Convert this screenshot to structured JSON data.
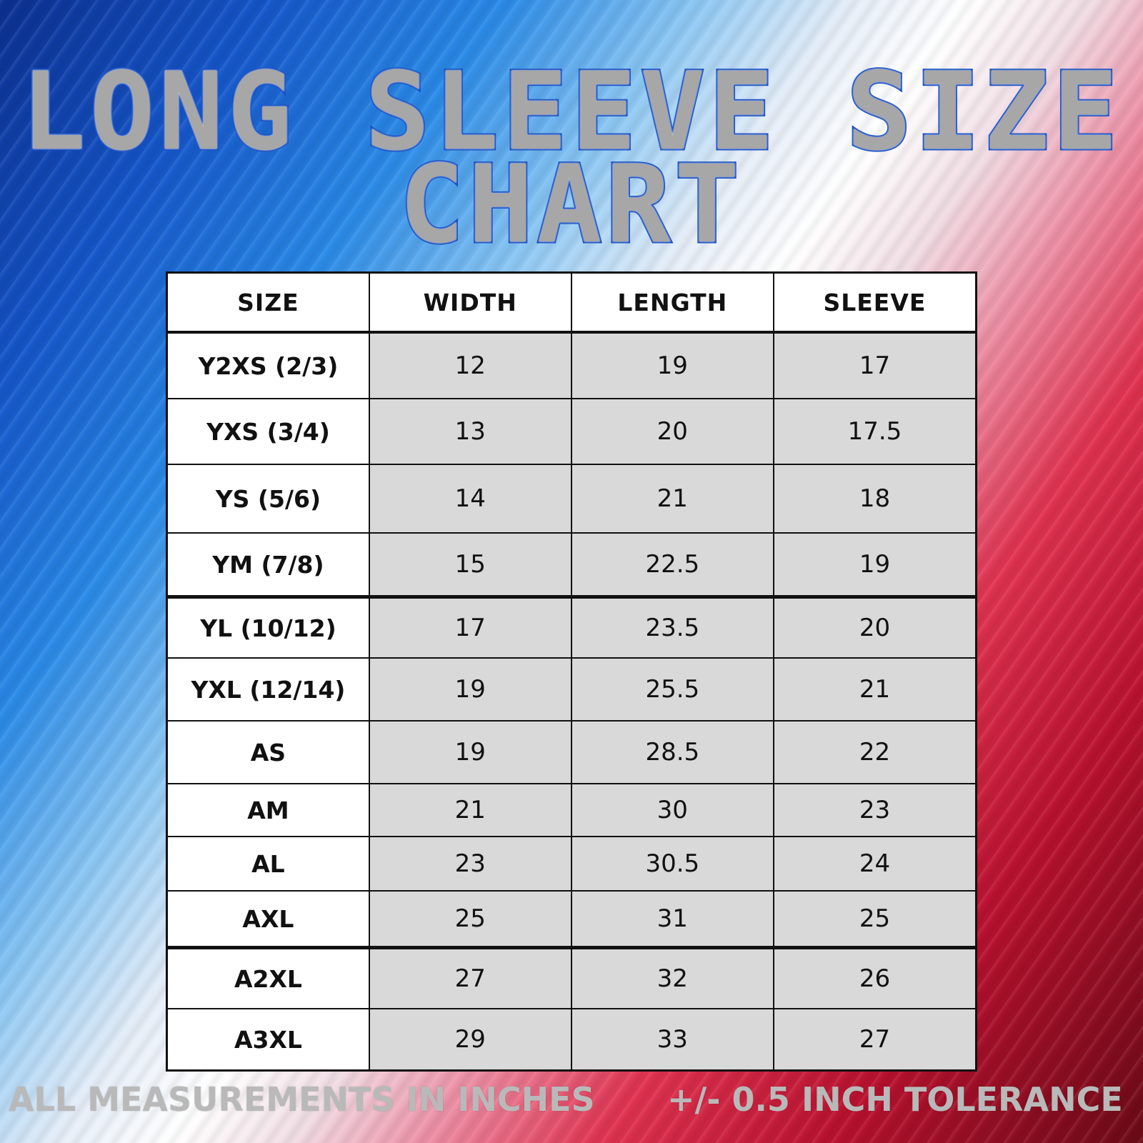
{
  "title": {
    "line1": "LONG SLEEVE SIZE",
    "line2": "CHART"
  },
  "table": {
    "headers": [
      "SIZE",
      "WIDTH",
      "LENGTH",
      "SLEEVE"
    ],
    "rows": [
      [
        "Y2XS (2/3)",
        "12",
        "19",
        "17"
      ],
      [
        "YXS (3/4)",
        "13",
        "20",
        "17.5"
      ],
      [
        "YS (5/6)",
        "14",
        "21",
        "18"
      ],
      [
        "YM (7/8)",
        "15",
        "22.5",
        "19"
      ],
      [
        "YL (10/12)",
        "17",
        "23.5",
        "20"
      ],
      [
        "YXL (12/14)",
        "19",
        "25.5",
        "21"
      ],
      [
        "AS",
        "19",
        "28.5",
        "22"
      ],
      [
        "AM",
        "21",
        "30",
        "23"
      ],
      [
        "AL",
        "23",
        "30.5",
        "24"
      ],
      [
        "AXL",
        "25",
        "31",
        "25"
      ],
      [
        "A2XL",
        "27",
        "32",
        "26"
      ],
      [
        "A3XL",
        "29",
        "33",
        "27"
      ]
    ]
  },
  "footer": {
    "left": "ALL MEASUREMENTS IN INCHES",
    "right": "+/- 0.5  INCH TOLERANCE"
  },
  "colors": {
    "title_fill": "#a7a7a7",
    "title_outline": "#1a4fc0",
    "cell_gray": "#d9d9d9",
    "footer_text": "#b9b9b9"
  }
}
